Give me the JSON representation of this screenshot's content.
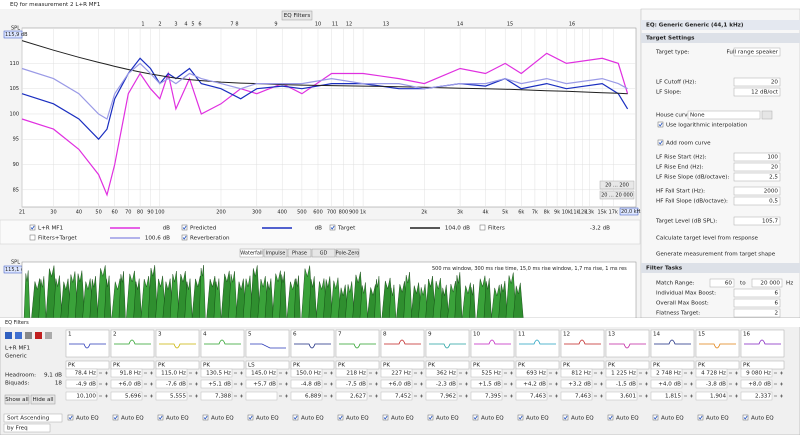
{
  "window_title": "EQ for measurement 2 L+R MF1",
  "chart_data": {
    "type": "line",
    "toolbar_button": "EQ Filters",
    "y_label": "SPL",
    "level_readout": "115,9 dB",
    "freq_readout": "20,0 kHz",
    "range_buttons": [
      "20 ... 200",
      "20 ... 20 000"
    ],
    "filter_markers": [
      "1",
      "2",
      "3",
      "4",
      "5",
      "6",
      "7",
      "8",
      "9",
      "10",
      "11",
      "12",
      "13",
      "14",
      "15",
      "16"
    ],
    "xscale": "log",
    "grid": true,
    "x": [
      21,
      30,
      40,
      50,
      55,
      60,
      70,
      80,
      90,
      100,
      110,
      120,
      140,
      160,
      200,
      250,
      300,
      400,
      500,
      700,
      1000,
      1500,
      2000,
      3000,
      4000,
      5000,
      6000,
      8000,
      10000,
      15000,
      18000,
      20000
    ],
    "series": [
      {
        "name": "L+R MF1",
        "color": "#e030e0",
        "readout": "dB",
        "values": [
          99,
          97,
          93,
          88,
          84,
          90,
          104,
          108,
          105,
          103,
          108,
          101,
          107,
          100,
          102,
          105,
          104,
          106,
          104,
          108,
          108,
          107,
          106,
          109,
          108,
          110,
          108,
          112,
          110,
          111,
          110,
          104
        ]
      },
      {
        "name": "Predicted",
        "color": "#1a2ec0",
        "readout": "dB",
        "values": [
          104,
          102,
          99,
          95,
          97,
          103,
          108,
          111,
          109,
          106,
          108,
          107,
          109,
          106,
          105,
          103,
          105,
          105.5,
          105,
          106,
          106,
          105,
          105,
          106,
          105.5,
          107,
          105,
          106,
          105,
          106,
          104,
          101
        ]
      },
      {
        "name": "Target",
        "color": "#202020",
        "readout": "104,0 dB",
        "values": [
          114.5,
          112.6,
          111.2,
          110.2,
          109.8,
          109.4,
          108.8,
          108.3,
          107.9,
          107.6,
          107.3,
          107.1,
          106.8,
          106.6,
          106.3,
          106.1,
          106,
          105.8,
          105.7,
          105.6,
          105.5,
          105.4,
          105.3,
          105.1,
          105,
          104.9,
          104.8,
          104.6,
          104.5,
          104.2,
          104.1,
          104
        ]
      },
      {
        "name": "Filters+Target",
        "color": "#9a9ae6",
        "readout": "100,6 dB",
        "values": [
          109,
          107,
          104,
          100,
          99,
          104,
          108,
          110,
          108,
          106,
          107,
          106,
          108,
          107,
          106,
          105,
          106,
          106,
          106,
          107,
          106,
          106,
          105,
          106,
          106,
          107,
          106,
          107,
          106,
          107,
          106,
          105
        ]
      }
    ],
    "extra_legend": [
      {
        "name": "Filters",
        "readout": "-3,2 dB"
      },
      {
        "name": "Reverberation"
      }
    ],
    "xlim": [
      21,
      22000
    ],
    "ylim": [
      81.6,
      117
    ],
    "xticks": [
      21,
      30,
      40,
      50,
      60,
      70,
      80,
      90,
      100,
      200,
      300,
      400,
      500,
      600,
      700,
      800,
      900,
      {
        "value": 1000,
        "label": "1k"
      },
      {
        "value": 2000,
        "label": "2k"
      },
      {
        "value": 3000,
        "label": "3k"
      },
      {
        "value": 4000,
        "label": "4k"
      },
      {
        "value": 5000,
        "label": "5k"
      },
      {
        "value": 6000,
        "label": "6k"
      },
      {
        "value": 7000,
        "label": "7k"
      },
      {
        "value": 8000,
        "label": "8k"
      },
      {
        "value": 9000,
        "label": "9k"
      },
      {
        "value": 10000,
        "label": "10k"
      },
      {
        "value": 11000,
        "label": "11k"
      },
      {
        "value": 12000,
        "label": "12k"
      },
      {
        "value": 13000,
        "label": "13k"
      },
      {
        "value": 15000,
        "label": "15k"
      },
      {
        "value": 17000,
        "label": "17k"
      }
    ],
    "yticks": [
      85,
      90,
      95,
      100,
      105,
      110
    ]
  },
  "waterfall": {
    "y_label": "SPL",
    "readout": "115,1 dB",
    "tabs": [
      "Waterfall",
      "Impulse",
      "Phase",
      "GD",
      "Pole-Zero"
    ],
    "info": "500 ms window, 300 ms rise time, 15,0 ms rise window, 1,7 ms rise, 1 ms res"
  },
  "right_panel": {
    "title": "EQ: Generic Generic (44,1 kHz)",
    "sections": [
      "Target Settings",
      "Filter Tasks"
    ],
    "rows": [
      {
        "label": "Target type:",
        "value": "Full range speaker"
      },
      {
        "label": "LF Cutoff (Hz):",
        "value": "20"
      },
      {
        "label": "LF Slope:",
        "value": "12 dB/oct"
      },
      {
        "label": "House curve",
        "value": "None"
      },
      {
        "label": "LF Rise Start (Hz):",
        "value": "100"
      },
      {
        "label": "LF Rise End (Hz):",
        "value": "20"
      },
      {
        "label": "LF Rise Slope (dB/octave):",
        "value": "2,5"
      },
      {
        "label": "HF Fall Start (Hz):",
        "value": "2000"
      },
      {
        "label": "HF Fall Slope (dB/octave):",
        "value": "0,5"
      },
      {
        "label": "Target Level (dB SPL):",
        "value": "105,7"
      },
      {
        "label": "Match Range:",
        "value": "60",
        "to": "to",
        "value2": "20 000",
        "unit": "Hz"
      },
      {
        "label": "Individual Max Boost:",
        "value": "6"
      },
      {
        "label": "Overall Max Boost:",
        "value": "6"
      },
      {
        "label": "Flatness Target:",
        "value": "2"
      }
    ],
    "checks": [
      "Use logarithmic interpolation",
      "Add room curve"
    ],
    "buttons": [
      "Calculate target level from response",
      "Generate measurement from target shape"
    ]
  },
  "eq_window": {
    "title": "EQ Filters",
    "measurement": "L+R MF1",
    "equalizer": "Generic",
    "headroom_label": "Headroom:",
    "headroom": "9,1 dB",
    "biquads_label": "Biquads:",
    "biquads": "18",
    "buttons": [
      "Show all",
      "Hide all"
    ],
    "sort": "Sort Ascending",
    "sort_by": "by Freq",
    "auto_eq": "Auto EQ",
    "filters": [
      {
        "number": "1",
        "color": "#2a3ab8",
        "type": "PK",
        "freq": "78,4 Hz",
        "gain": "-4,9 dB",
        "q": "10,100"
      },
      {
        "number": "2",
        "color": "#2aa02a",
        "type": "PK",
        "freq": "91,8 Hz",
        "gain": "+6,0 dB",
        "q": "5,696"
      },
      {
        "number": "3",
        "color": "#c8b400",
        "type": "PK",
        "freq": "115,0 Hz",
        "gain": "-7,6 dB",
        "q": "5,555"
      },
      {
        "number": "4",
        "color": "#2aa02a",
        "type": "PK",
        "freq": "130,5 Hz",
        "gain": "+5,1 dB",
        "q": "7,388"
      },
      {
        "number": "5",
        "color": "#2a3ab8",
        "type": "LS",
        "freq": "145,0 Hz",
        "gain": "+5,7 dB"
      },
      {
        "number": "6",
        "color": "#1a2a80",
        "type": "PK",
        "freq": "150,0 Hz",
        "gain": "-4,8 dB",
        "q": "6,889"
      },
      {
        "number": "7",
        "color": "#2aa02a",
        "type": "PK",
        "freq": "218 Hz",
        "gain": "-7,5 dB",
        "q": "2,627"
      },
      {
        "number": "8",
        "color": "#c02020",
        "type": "PK",
        "freq": "227 Hz",
        "gain": "+6,0 dB",
        "q": "7,452"
      },
      {
        "number": "9",
        "color": "#20a0a0",
        "type": "PK",
        "freq": "362 Hz",
        "gain": "-2,3 dB",
        "q": "7,962"
      },
      {
        "number": "10",
        "color": "#c020c0",
        "type": "PK",
        "freq": "525 Hz",
        "gain": "+1,5 dB",
        "q": "7,395"
      },
      {
        "number": "11",
        "color": "#20a0c0",
        "type": "PK",
        "freq": "693 Hz",
        "gain": "+4,2 dB",
        "q": "7,463"
      },
      {
        "number": "12",
        "color": "#c02020",
        "type": "PK",
        "freq": "812 Hz",
        "gain": "+3,2 dB",
        "q": "7,463"
      },
      {
        "number": "13",
        "color": "#c020a0",
        "type": "PK",
        "freq": "1 225 Hz",
        "gain": "-1,5 dB",
        "q": "3,601"
      },
      {
        "number": "14",
        "color": "#1a2a80",
        "type": "PK",
        "freq": "2 748 Hz",
        "gain": "+4,0 dB",
        "q": "1,815"
      },
      {
        "number": "15",
        "color": "#e08010",
        "type": "PK",
        "freq": "4 728 Hz",
        "gain": "-3,8 dB",
        "q": "1,904"
      },
      {
        "number": "16",
        "color": "#8020c0",
        "type": "PK",
        "freq": "9 080 Hz",
        "gain": "+8,0 dB",
        "q": "2,337"
      }
    ]
  }
}
